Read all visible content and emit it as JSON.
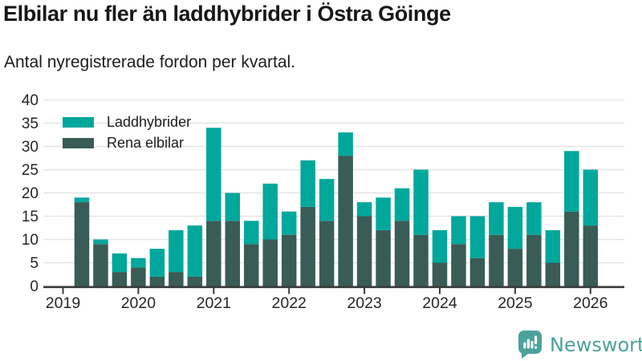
{
  "chart_data": {
    "type": "bar",
    "stacked": true,
    "title": "Elbilar nu fler än laddhybrider i Östra Göinge",
    "subtitle": "Antal nyregistrerade fordon per kvartal.",
    "categories": [
      "2019 Q2",
      "2019 Q3",
      "2019 Q4",
      "2020 Q1",
      "2020 Q2",
      "2020 Q3",
      "2020 Q4",
      "2021 Q1",
      "2021 Q2",
      "2021 Q3",
      "2021 Q4",
      "2022 Q1",
      "2022 Q2",
      "2022 Q3",
      "2022 Q4",
      "2023 Q1",
      "2023 Q2",
      "2023 Q3",
      "2023 Q4",
      "2024 Q1",
      "2024 Q2",
      "2024 Q3",
      "2024 Q4",
      "2025 Q1",
      "2025 Q2",
      "2025 Q3",
      "2025 Q4",
      "2026 Q1"
    ],
    "series": [
      {
        "name": "Rena elbilar",
        "color": "#395C56",
        "values": [
          18,
          9,
          3,
          4,
          2,
          3,
          2,
          14,
          14,
          9,
          10,
          11,
          17,
          14,
          28,
          15,
          12,
          14,
          11,
          5,
          9,
          6,
          11,
          8,
          11,
          5,
          16,
          13
        ]
      },
      {
        "name": "Laddhybrider",
        "color": "#00A79B",
        "values": [
          1,
          1,
          4,
          2,
          6,
          9,
          11,
          20,
          6,
          5,
          12,
          5,
          10,
          9,
          5,
          3,
          7,
          7,
          14,
          7,
          6,
          9,
          7,
          9,
          7,
          7,
          13,
          12
        ]
      }
    ],
    "legend": [
      {
        "label": "Laddhybrider",
        "color": "#00A79B"
      },
      {
        "label": "Rena elbilar",
        "color": "#395C56"
      }
    ],
    "ylim": [
      0,
      40
    ],
    "ytick_step": 5,
    "yticklabels": [
      "0",
      "5",
      "10",
      "15",
      "20",
      "25",
      "30",
      "35",
      "40"
    ],
    "xticklabels": [
      "2019",
      "2020",
      "2021",
      "2022",
      "2023",
      "2024",
      "2025",
      "2026"
    ],
    "grid": true,
    "legend_position": "top-left",
    "gridline_color": "#e4e4e4",
    "axis_color": "#3a3a3a",
    "tick_label_color": "#262626"
  },
  "branding": {
    "name": "Newsworthy",
    "color": "#4BA29B"
  }
}
